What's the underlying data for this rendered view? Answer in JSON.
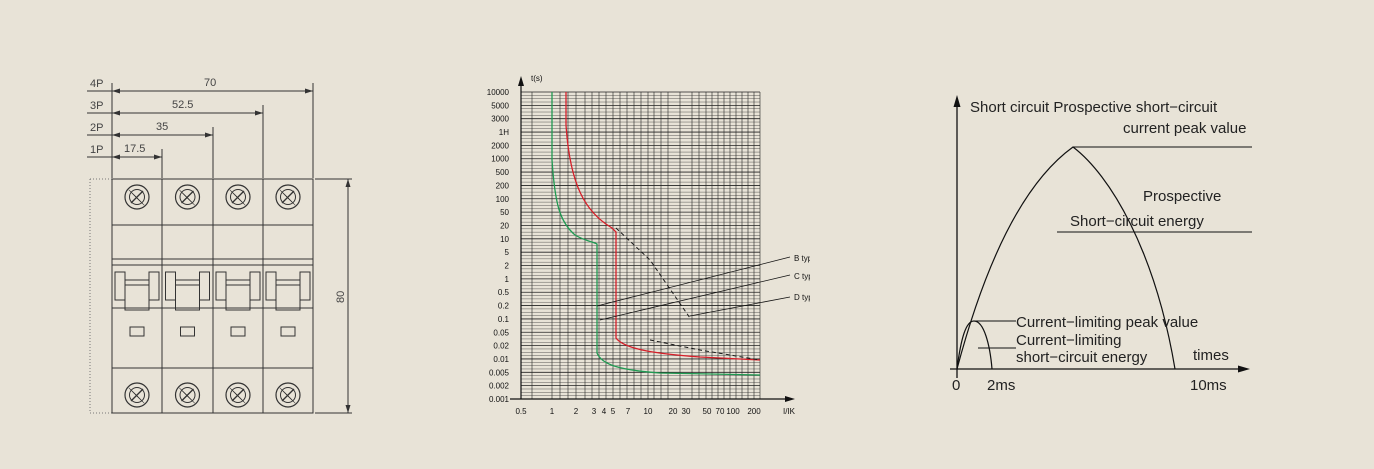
{
  "background": "#e8e3d7",
  "breaker": {
    "row_labels": [
      "4P",
      "3P",
      "2P",
      "1P"
    ],
    "width_labels": [
      "70",
      "52.5",
      "35",
      "17.5"
    ],
    "height_label": "80"
  },
  "trip_chart": {
    "y_title": "t(s)",
    "y_ticks": [
      "10000",
      "5000",
      "3000",
      "1H",
      "2000",
      "1000",
      "500",
      "200",
      "100",
      "50",
      "20",
      "10",
      "5",
      "2",
      "1",
      "0.5",
      "0.2",
      "0.1",
      "0.05",
      "0.02",
      "0.01",
      "0.005",
      "0.002",
      "0.001"
    ],
    "x_ticks": [
      "0.5",
      "1",
      "2",
      "3",
      "4",
      "5",
      "7",
      "10",
      "20",
      "30",
      "50",
      "70",
      "100",
      "200"
    ],
    "x_title": "I/IK",
    "legend": [
      "B type",
      "C type",
      "D type"
    ],
    "colors": {
      "b": "#1f9a52",
      "c": "#d61f2a",
      "d": "#1a1a1a"
    }
  },
  "energy": {
    "title_line1": "Short circuit Prospective short−circuit",
    "title_line2": "current peak value",
    "prospective_line1": "Prospective",
    "prospective_line2": "Short−circuit energy",
    "limiting_peak": "Current−limiting peak value",
    "limiting_energy_line1": "Current−limiting",
    "limiting_energy_line2": "short−circuit energy",
    "times": "times",
    "x_zero": "0",
    "x_2ms": "2ms",
    "x_10ms": "10ms"
  }
}
